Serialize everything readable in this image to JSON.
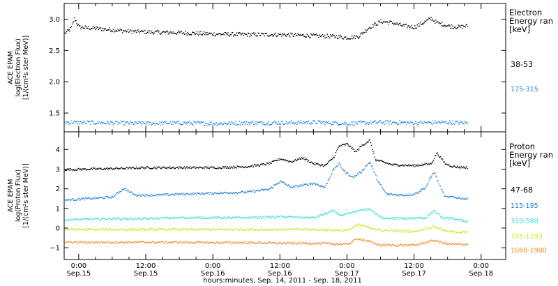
{
  "figure": {
    "xlabel": "hours:minutes, Sep. 14, 2011 - Sep. 18, 2011",
    "xticks": [
      {
        "t": 0,
        "time": "0:00",
        "date": "Sep.15"
      },
      {
        "t": 12,
        "time": "12:00",
        "date": "Sep.15"
      },
      {
        "t": 24,
        "time": "0:00",
        "date": "Sep.16"
      },
      {
        "t": 36,
        "time": "12:00",
        "date": "Sep.16"
      },
      {
        "t": 48,
        "time": "0:00",
        "date": "Sep.17"
      },
      {
        "t": 60,
        "time": "12:00",
        "date": "Sep.17"
      },
      {
        "t": 72,
        "time": "0:00",
        "date": "Sep.18"
      }
    ],
    "x_range_hours_from_sep15": [
      -2.6,
      76.4
    ]
  },
  "chart_data": [
    {
      "type": "scatter",
      "panel": "electron",
      "ylabel": [
        "ACE EPAM",
        "log(Electron Flux)",
        "[1/(cm²s ster MeV)]"
      ],
      "ylim": [
        1.2,
        3.25
      ],
      "yticks": [
        1.5,
        2.0,
        2.5,
        3.0
      ],
      "ytick_labels": [
        "1.5",
        "2.0",
        "2.5",
        "3.0"
      ],
      "legend_title": [
        "Electron",
        "Energy ran",
        "[keV]"
      ],
      "series": [
        {
          "name": "38-53",
          "color": "#000000",
          "points": [
            [
              -2.5,
              2.78
            ],
            [
              -1.5,
              2.85
            ],
            [
              -0.8,
              3.02
            ],
            [
              0,
              2.88
            ],
            [
              4,
              2.85
            ],
            [
              8,
              2.82
            ],
            [
              12,
              2.8
            ],
            [
              18,
              2.79
            ],
            [
              24,
              2.77
            ],
            [
              30,
              2.76
            ],
            [
              36,
              2.76
            ],
            [
              42,
              2.74
            ],
            [
              46,
              2.73
            ],
            [
              48,
              2.71
            ],
            [
              50,
              2.73
            ],
            [
              52,
              2.88
            ],
            [
              54,
              2.97
            ],
            [
              56,
              2.95
            ],
            [
              58,
              2.9
            ],
            [
              60,
              2.88
            ],
            [
              61,
              2.92
            ],
            [
              63,
              3.02
            ],
            [
              64,
              2.95
            ],
            [
              66,
              2.9
            ],
            [
              68,
              2.88
            ],
            [
              69.5,
              2.9
            ]
          ]
        },
        {
          "name": "175-315",
          "color": "#1f7fd8",
          "points": [
            [
              -2.5,
              1.36
            ],
            [
              6,
              1.35
            ],
            [
              12,
              1.34
            ],
            [
              18,
              1.35
            ],
            [
              24,
              1.34
            ],
            [
              30,
              1.35
            ],
            [
              36,
              1.35
            ],
            [
              42,
              1.36
            ],
            [
              48,
              1.34
            ],
            [
              54,
              1.36
            ],
            [
              60,
              1.35
            ],
            [
              66,
              1.36
            ],
            [
              69.5,
              1.35
            ]
          ]
        }
      ]
    },
    {
      "type": "scatter",
      "panel": "proton",
      "ylabel": [
        "ACE EPAM",
        "log(Proton Flux)",
        "[1/(cm²s ster MeV)]"
      ],
      "ylim": [
        -1.6,
        4.9
      ],
      "yticks": [
        -1,
        0,
        1,
        2,
        3,
        4
      ],
      "ytick_labels": [
        "−1",
        "0",
        "1",
        "2",
        "3",
        "4"
      ],
      "legend_title": [
        "Proton",
        "Energy ran",
        "[keV]"
      ],
      "series": [
        {
          "name": "47-68",
          "color": "#000000",
          "points": [
            [
              -2.5,
              3.0
            ],
            [
              6,
              3.05
            ],
            [
              12,
              3.1
            ],
            [
              18,
              3.1
            ],
            [
              24,
              3.1
            ],
            [
              30,
              3.15
            ],
            [
              34,
              3.3
            ],
            [
              36,
              3.55
            ],
            [
              38,
              3.4
            ],
            [
              40,
              3.6
            ],
            [
              42,
              3.3
            ],
            [
              44,
              3.2
            ],
            [
              45.5,
              3.6
            ],
            [
              46.5,
              4.2
            ],
            [
              48,
              4.3
            ],
            [
              49.5,
              3.9
            ],
            [
              50.5,
              4.2
            ],
            [
              52,
              4.5
            ],
            [
              53,
              3.5
            ],
            [
              56,
              3.25
            ],
            [
              60,
              3.2
            ],
            [
              63,
              3.3
            ],
            [
              64,
              3.85
            ],
            [
              65.5,
              3.3
            ],
            [
              67,
              3.15
            ],
            [
              69.5,
              3.1
            ]
          ]
        },
        {
          "name": "115-195",
          "color": "#1f7fd8",
          "points": [
            [
              -2.5,
              1.45
            ],
            [
              6,
              1.6
            ],
            [
              8,
              2.05
            ],
            [
              10,
              1.7
            ],
            [
              14,
              1.7
            ],
            [
              18,
              1.75
            ],
            [
              24,
              1.8
            ],
            [
              30,
              1.85
            ],
            [
              34,
              2.0
            ],
            [
              36,
              2.4
            ],
            [
              38,
              2.1
            ],
            [
              40,
              2.2
            ],
            [
              42,
              2.3
            ],
            [
              44,
              2.1
            ],
            [
              45.5,
              3.0
            ],
            [
              46.5,
              3.3
            ],
            [
              47.5,
              2.9
            ],
            [
              49,
              2.6
            ],
            [
              50.5,
              2.9
            ],
            [
              52,
              3.4
            ],
            [
              53.5,
              2.4
            ],
            [
              55,
              1.75
            ],
            [
              58,
              1.7
            ],
            [
              60,
              1.75
            ],
            [
              62,
              2.1
            ],
            [
              63.5,
              2.9
            ],
            [
              64.5,
              2.2
            ],
            [
              65.5,
              1.6
            ],
            [
              67,
              1.6
            ],
            [
              69.5,
              1.5
            ]
          ]
        },
        {
          "name": "310-580",
          "color": "#2ee0cf",
          "points": [
            [
              -2.5,
              0.45
            ],
            [
              6,
              0.5
            ],
            [
              12,
              0.5
            ],
            [
              18,
              0.55
            ],
            [
              24,
              0.55
            ],
            [
              30,
              0.55
            ],
            [
              36,
              0.6
            ],
            [
              42,
              0.55
            ],
            [
              45.5,
              0.9
            ],
            [
              47,
              0.65
            ],
            [
              50,
              0.9
            ],
            [
              52,
              1.0
            ],
            [
              54,
              0.55
            ],
            [
              58,
              0.5
            ],
            [
              62,
              0.55
            ],
            [
              63.5,
              0.9
            ],
            [
              65,
              0.55
            ],
            [
              67,
              0.5
            ],
            [
              69.5,
              0.35
            ]
          ]
        },
        {
          "name": "795-1193",
          "color": "#c8e81a",
          "points": [
            [
              -2.5,
              -0.05
            ],
            [
              6,
              -0.05
            ],
            [
              12,
              -0.05
            ],
            [
              18,
              -0.05
            ],
            [
              24,
              -0.05
            ],
            [
              30,
              -0.05
            ],
            [
              36,
              -0.05
            ],
            [
              42,
              -0.05
            ],
            [
              48,
              -0.1
            ],
            [
              50,
              0.2
            ],
            [
              54,
              -0.1
            ],
            [
              60,
              -0.15
            ],
            [
              63.5,
              0.1
            ],
            [
              66,
              -0.15
            ],
            [
              69.5,
              -0.2
            ]
          ]
        },
        {
          "name": "1060-1900",
          "color": "#f08a1e",
          "points": [
            [
              -2.5,
              -0.7
            ],
            [
              6,
              -0.7
            ],
            [
              12,
              -0.7
            ],
            [
              18,
              -0.7
            ],
            [
              24,
              -0.72
            ],
            [
              30,
              -0.72
            ],
            [
              36,
              -0.75
            ],
            [
              42,
              -0.75
            ],
            [
              48,
              -0.8
            ],
            [
              50,
              -0.5
            ],
            [
              54,
              -0.85
            ],
            [
              60,
              -0.85
            ],
            [
              63.5,
              -0.6
            ],
            [
              66,
              -0.8
            ],
            [
              69.5,
              -0.8
            ]
          ]
        }
      ]
    }
  ]
}
